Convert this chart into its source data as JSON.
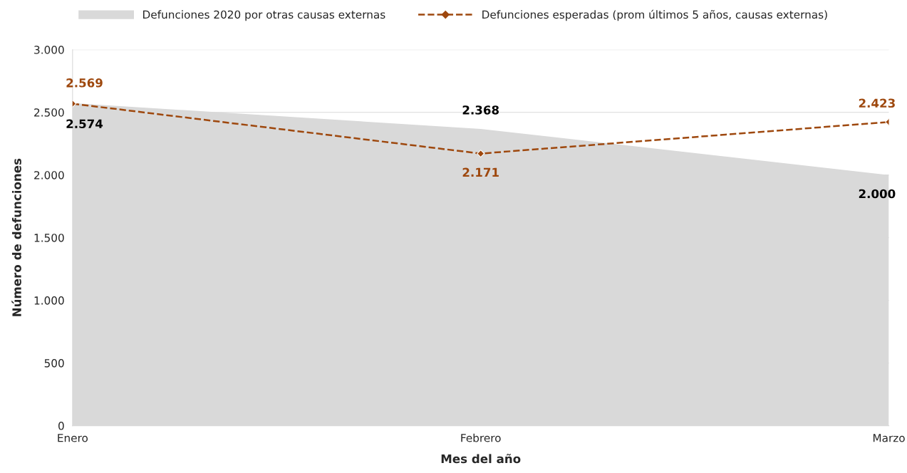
{
  "chart_data": {
    "type": "area",
    "xlabel": "Mes del año",
    "ylabel": "Número de defunciones",
    "categories": [
      "Enero",
      "Febrero",
      "Marzo"
    ],
    "series": [
      {
        "name": "Defunciones 2020 por otras causas externas",
        "color": "#d9d9d9",
        "values": [
          2574,
          2368,
          2000
        ],
        "value_labels": [
          "2.574",
          "2.368",
          "2.000"
        ]
      },
      {
        "name": "Defunciones esperadas (prom últimos 5 años, causas externas)",
        "type": "line",
        "color": "#9e480e",
        "values": [
          2569,
          2171,
          2423
        ],
        "value_labels": [
          "2.569",
          "2.171",
          "2.423"
        ],
        "marker": "diamond",
        "line_style": "dashed"
      }
    ],
    "ylim": [
      0,
      3000
    ],
    "yticks": [
      0,
      {
        "value": 500,
        "label": "500"
      },
      {
        "value": 1000,
        "label": "1.000"
      },
      {
        "value": 1500,
        "label": "1.500"
      },
      {
        "value": 2000,
        "label": "2.000"
      },
      {
        "value": 2500,
        "label": "2.500"
      },
      {
        "value": 3000,
        "label": "3.000"
      }
    ],
    "grid": "y",
    "legend": "top"
  }
}
